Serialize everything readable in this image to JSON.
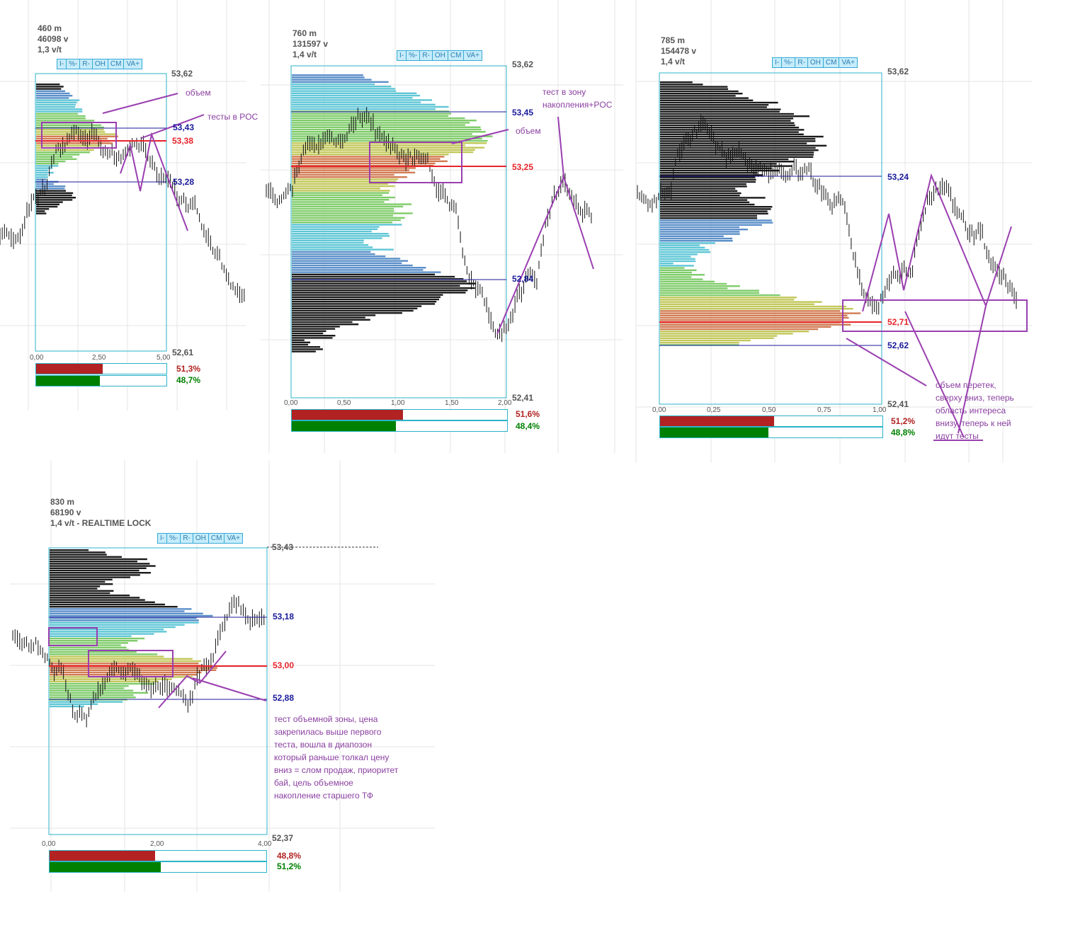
{
  "colors": {
    "hvn": "#1a1a1a",
    "blue": "#5b8fc9",
    "cyan": "#5fc6d6",
    "green": "#7fcc6a",
    "olive": "#c2c85a",
    "orange": "#d27a52",
    "poc": "#e8242b",
    "va": "#1a1a9a",
    "annot": "#9a3fb0",
    "sell": "#b22222",
    "buy": "#008000",
    "frame": "#2bb3c9"
  },
  "buttons": [
    "I-",
    "%-",
    "R-",
    "OH",
    "CM",
    "VA+"
  ],
  "panels": [
    {
      "id": "p1",
      "stats": [
        "460 m",
        "46098 v",
        "1,3 v/t"
      ],
      "price_labels": [
        {
          "text": "53,62",
          "kind": "top"
        },
        {
          "text": "53,43",
          "kind": "va"
        },
        {
          "text": "53,38",
          "kind": "poc"
        },
        {
          "text": "53,28",
          "kind": "va"
        },
        {
          "text": "52,61",
          "kind": "bottom"
        }
      ],
      "x_ticks": [
        "0,00",
        "2,50",
        "5,00"
      ],
      "sell_pct": "51,3%",
      "buy_pct": "48,7%",
      "sell_frac": 0.513,
      "buy_frac": 0.487,
      "notes": [
        "объем",
        "тесты в POC"
      ]
    },
    {
      "id": "p2",
      "stats": [
        "760 m",
        "131597 v",
        "1,4 v/t"
      ],
      "price_labels": [
        {
          "text": "53,62",
          "kind": "top"
        },
        {
          "text": "53,45",
          "kind": "va"
        },
        {
          "text": "53,25",
          "kind": "poc"
        },
        {
          "text": "52,84",
          "kind": "va"
        },
        {
          "text": "52,41",
          "kind": "bottom"
        }
      ],
      "x_ticks": [
        "0,00",
        "0,50",
        "1,00",
        "1,50",
        "2,00"
      ],
      "sell_pct": "51,6%",
      "buy_pct": "48,4%",
      "sell_frac": 0.516,
      "buy_frac": 0.484,
      "notes": [
        "тест в зону",
        "накопления+POC",
        "объем"
      ]
    },
    {
      "id": "p3",
      "stats": [
        "785 m",
        "154478 v",
        "1,4 v/t"
      ],
      "price_labels": [
        {
          "text": "53,62",
          "kind": "top"
        },
        {
          "text": "53,24",
          "kind": "va"
        },
        {
          "text": "52,71",
          "kind": "poc"
        },
        {
          "text": "52,62",
          "kind": "va"
        },
        {
          "text": "52,41",
          "kind": "bottom"
        }
      ],
      "x_ticks": [
        "0,00",
        "0,25",
        "0,50",
        "0,75",
        "1,00"
      ],
      "sell_pct": "51,2%",
      "buy_pct": "48,8%",
      "sell_frac": 0.512,
      "buy_frac": 0.488,
      "notes": [
        "объем перетек,",
        "сверху вниз, теперь",
        "область интереса",
        "внизу, теперь к ней",
        "идут тесты"
      ]
    },
    {
      "id": "p4",
      "stats": [
        "830 m",
        "68190 v",
        "1,4 v/t - REALTIME LOCK"
      ],
      "price_labels": [
        {
          "text": "53,43",
          "kind": "top"
        },
        {
          "text": "53,18",
          "kind": "va"
        },
        {
          "text": "53,00",
          "kind": "poc"
        },
        {
          "text": "52,88",
          "kind": "va"
        },
        {
          "text": "52,37",
          "kind": "bottom"
        }
      ],
      "x_ticks": [
        "0,00",
        "2,00",
        "4,00"
      ],
      "sell_pct": "48,8%",
      "buy_pct": "51,2%",
      "sell_frac": 0.488,
      "buy_frac": 0.512,
      "notes": [
        "тест объемной зоны, цена",
        "закрепилась выше первого",
        "теста, вошла в диапозон",
        "который раньше толкал цену",
        "вниз = слом продаж, приоритет",
        "бай, цель объемное",
        "накопление старшего ТФ"
      ]
    }
  ]
}
